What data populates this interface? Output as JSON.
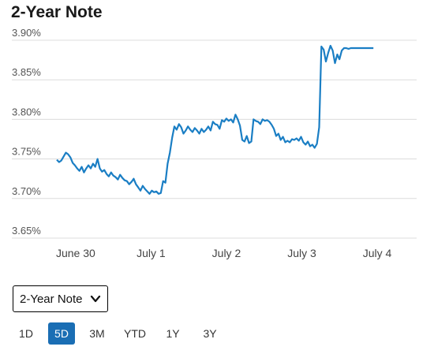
{
  "page": {
    "title": "2-Year Note"
  },
  "selector": {
    "value": "2-Year Note"
  },
  "ranges": [
    {
      "label": "1D",
      "active": false
    },
    {
      "label": "5D",
      "active": true
    },
    {
      "label": "3M",
      "active": false
    },
    {
      "label": "YTD",
      "active": false
    },
    {
      "label": "1Y",
      "active": false
    },
    {
      "label": "3Y",
      "active": false
    }
  ],
  "colors": {
    "line": "#1a7ec4",
    "grid": "#dcdcdc",
    "active": "#1a6eb4"
  },
  "chart_data": {
    "type": "line",
    "title": "2-Year Note",
    "y_unit": "%",
    "ylim": [
      3.65,
      3.9
    ],
    "yticks": [
      "3.90%",
      "3.85%",
      "3.80%",
      "3.75%",
      "3.70%",
      "3.65%"
    ],
    "ytick_values": [
      3.9,
      3.85,
      3.8,
      3.75,
      3.7,
      3.65
    ],
    "xlim": [
      0,
      4.7
    ],
    "xticks": [
      "June 30",
      "July 1",
      "July 2",
      "July 3",
      "July 4"
    ],
    "xtick_values": [
      0.25,
      1.25,
      2.25,
      3.25,
      4.25
    ],
    "grid": true,
    "series": [
      {
        "x": [
          0.0,
          0.03,
          0.06,
          0.09,
          0.12,
          0.15,
          0.18,
          0.21,
          0.24,
          0.27,
          0.3,
          0.33,
          0.36,
          0.39,
          0.42,
          0.45,
          0.48,
          0.51,
          0.54,
          0.57,
          0.6,
          0.63,
          0.66,
          0.69,
          0.72,
          0.75,
          0.78,
          0.81,
          0.84,
          0.87,
          0.9,
          0.93,
          0.96,
          0.99,
          1.02,
          1.05,
          1.08,
          1.11,
          1.14,
          1.17,
          1.2,
          1.23,
          1.26,
          1.29,
          1.32,
          1.35,
          1.38,
          1.41,
          1.44,
          1.47,
          1.5,
          1.53,
          1.56,
          1.59,
          1.62,
          1.65,
          1.68,
          1.71,
          1.74,
          1.77,
          1.8,
          1.83,
          1.86,
          1.89,
          1.92,
          1.95,
          1.98,
          2.01,
          2.04,
          2.07,
          2.1,
          2.13,
          2.16,
          2.19,
          2.22,
          2.25,
          2.28,
          2.31,
          2.34,
          2.37,
          2.4,
          2.43,
          2.46,
          2.49,
          2.52,
          2.55,
          2.58,
          2.61,
          2.64,
          2.67,
          2.7,
          2.73,
          2.76,
          2.79,
          2.82,
          2.85,
          2.88,
          2.91,
          2.94,
          2.97,
          3.0,
          3.03,
          3.06,
          3.09,
          3.12,
          3.15,
          3.18,
          3.21,
          3.24,
          3.27,
          3.3,
          3.33,
          3.36,
          3.39,
          3.42,
          3.45,
          3.48,
          3.51,
          3.54,
          3.57,
          3.6,
          3.63,
          3.66,
          3.69,
          3.72,
          3.75,
          3.78,
          3.81,
          3.84,
          3.87,
          3.9,
          3.93,
          3.96,
          3.99,
          4.02,
          4.05,
          4.08,
          4.11,
          4.14,
          4.17,
          4.2
        ],
        "y": [
          3.749,
          3.746,
          3.748,
          3.753,
          3.758,
          3.756,
          3.752,
          3.745,
          3.742,
          3.738,
          3.735,
          3.74,
          3.733,
          3.738,
          3.742,
          3.738,
          3.744,
          3.74,
          3.75,
          3.738,
          3.734,
          3.736,
          3.731,
          3.728,
          3.733,
          3.729,
          3.727,
          3.724,
          3.73,
          3.726,
          3.723,
          3.722,
          3.718,
          3.721,
          3.725,
          3.718,
          3.714,
          3.71,
          3.716,
          3.712,
          3.709,
          3.706,
          3.71,
          3.708,
          3.709,
          3.706,
          3.707,
          3.722,
          3.72,
          3.744,
          3.758,
          3.777,
          3.791,
          3.787,
          3.794,
          3.79,
          3.782,
          3.786,
          3.791,
          3.787,
          3.784,
          3.789,
          3.786,
          3.782,
          3.788,
          3.784,
          3.787,
          3.791,
          3.786,
          3.797,
          3.794,
          3.793,
          3.788,
          3.799,
          3.797,
          3.801,
          3.798,
          3.8,
          3.796,
          3.806,
          3.8,
          3.792,
          3.774,
          3.772,
          3.779,
          3.77,
          3.772,
          3.8,
          3.798,
          3.797,
          3.794,
          3.8,
          3.798,
          3.799,
          3.797,
          3.793,
          3.788,
          3.779,
          3.782,
          3.774,
          3.778,
          3.771,
          3.773,
          3.771,
          3.775,
          3.774,
          3.776,
          3.773,
          3.778,
          3.771,
          3.768,
          3.772,
          3.766,
          3.768,
          3.764,
          3.769,
          3.79,
          3.892,
          3.888,
          3.873,
          3.884,
          3.893,
          3.887,
          3.871,
          3.882,
          3.876,
          3.887,
          3.89,
          3.89,
          3.889,
          3.89,
          3.89,
          3.89,
          3.89,
          3.89,
          3.89,
          3.89,
          3.89,
          3.89,
          3.89,
          3.89
        ]
      }
    ]
  }
}
